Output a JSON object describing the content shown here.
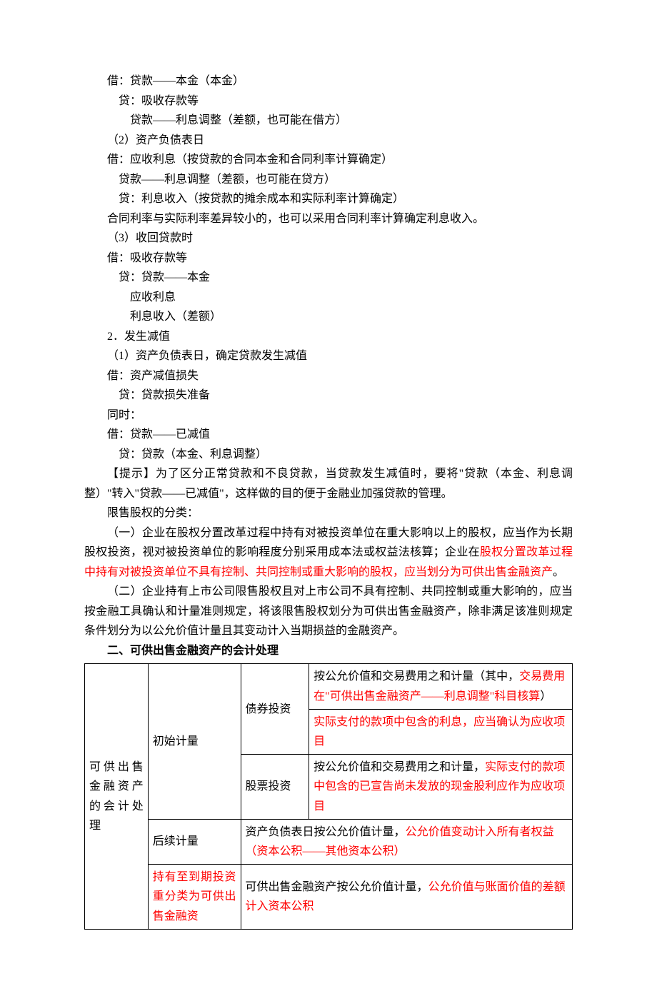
{
  "lines": {
    "l1": "借：贷款——本金（本金）",
    "l2": "贷：吸收存款等",
    "l3": "贷款——利息调整（差额，也可能在借方）",
    "l4": "（2）资产负债表日",
    "l5": "借：应收利息（按贷款的合同本金和合同利率计算确定）",
    "l6": "贷款——利息调整（差额，也可能在贷方）",
    "l7": "贷：利息收入（按贷款的摊余成本和实际利率计算确定）",
    "l8": "合同利率与实际利率差异较小的，也可以采用合同利率计算确定利息收入。",
    "l9": "（3）收回贷款时",
    "l10": "借：吸收存款等",
    "l11": "贷：贷款——本金",
    "l12": "应收利息",
    "l13": "利息收入（差额）",
    "l14": "2．发生减值",
    "l15": "（1）资产负债表日，确定贷款发生减值",
    "l16": "借：资产减值损失",
    "l17": "贷：贷款损失准备",
    "l18": "同时：",
    "l19": "借：贷款——已减值",
    "l20": "贷：贷款（本金、利息调整）",
    "tip": "【提示】为了区分正常贷款和不良贷款，当贷款发生减值时，要将\"贷款（本金、利息调整）\"转入\"贷款——已减值\"，这样做的目的便于金融业加强贷款的管理。",
    "restrict_title": "限售股权的分类：",
    "p1_a": "（一）企业在股权分置改革过程中持有对被投资单位在重大影响以上的股权，应当作为长期股权投资，视对被投资单位的影响程度分别采用成本法或权益法核算；企业在",
    "p1_b": "股权分置改革过程中持有对被投资单位不具有控制、共同控制或重大影响的股权，应当划分为可供出售金融资产",
    "p1_c": "。",
    "p2": "（二）企业持有上市公司限售股权且对上市公司不具有控制、共同控制或重大影响的，应当按金融工具确认和计量准则规定，将该限售股权划分为可供出售金融资产，除非满足该准则规定条件划分为以公允价值计量且其变动计入当期损益的金融资产。",
    "section2": "二、可供出售金融资产的会计处理"
  },
  "table": {
    "rowhead": "可供出售金融资产的会计处理",
    "r1c2": "初始计量",
    "r1c3": "债券投资",
    "r1c4_a": "按公允价值和交易费用之和计量（其中，",
    "r1c4_b": "交易费用在\"可供出售金融资产——利息调整\"科目核算",
    "r1c4_c": "）",
    "r2c4": "实际支付的款项中包含的利息，应当确认为应收项目",
    "r3c3": "股票投资",
    "r3c4_a": "按公允价值和交易费用之和计量，",
    "r3c4_b": "实际支付的款项中包含的已宣告尚未发放的现金股利应作为应收项目",
    "r4c2": "后续计量",
    "r4c4_a": "资产负债表日按公允价值计量，",
    "r4c4_b": "公允价值变动计入所有者权益（资本公积——其他资本公积）",
    "r5c2": "持有至到期投资重分类为可供出售金融资",
    "r5c4_a": "可供出售金融资产按公允价值计量，",
    "r5c4_b": "公允价值与账面价值的差额计入资本公积"
  }
}
